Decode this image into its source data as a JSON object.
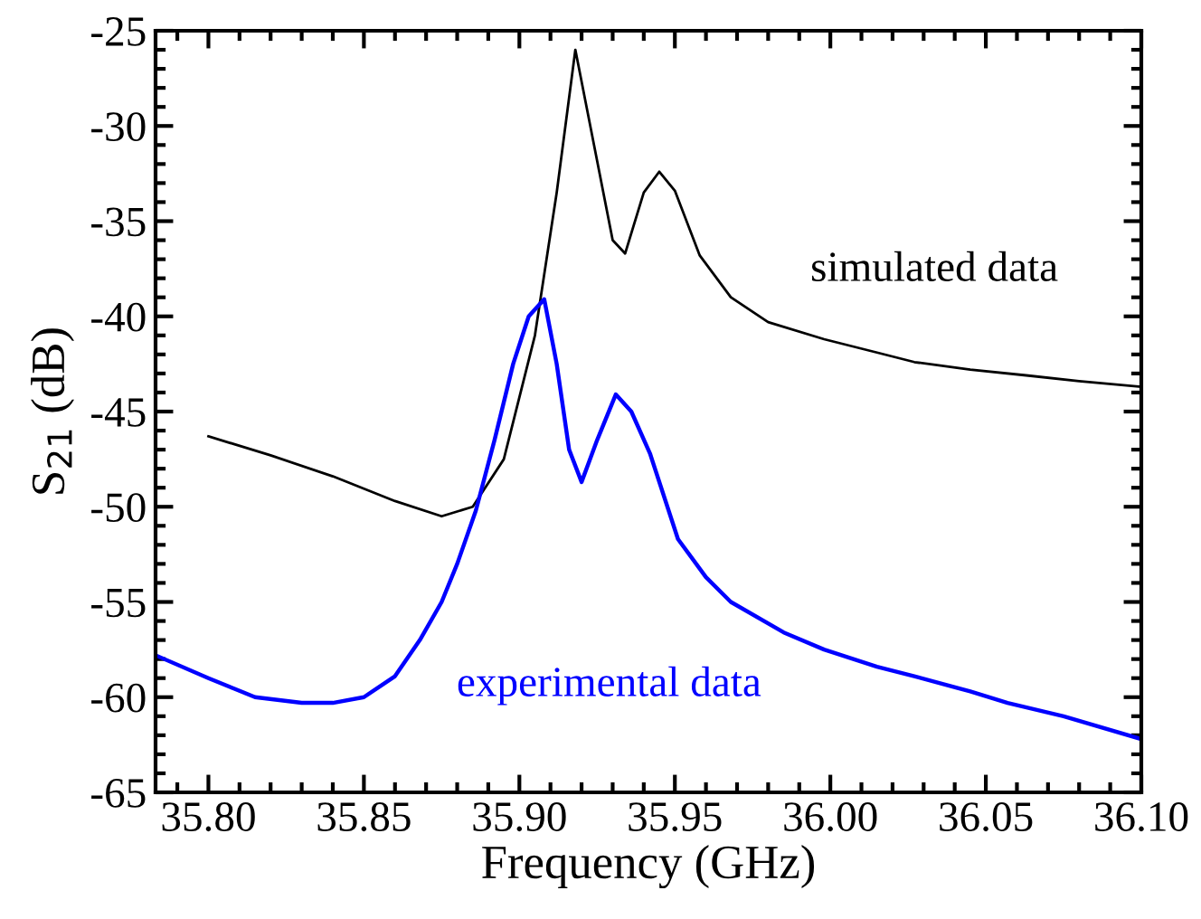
{
  "chart_data": {
    "type": "line",
    "xlabel": "Frequency (GHz)",
    "ylabel": "S$_{21}$ (dB)",
    "xlim": [
      35.783,
      36.1
    ],
    "ylim": [
      -65,
      -25
    ],
    "xticks": [
      {
        "value": 35.8,
        "label": "35.80"
      },
      {
        "value": 35.85,
        "label": "35.85"
      },
      {
        "value": 35.9,
        "label": "35.90"
      },
      {
        "value": 35.95,
        "label": "35.95"
      },
      {
        "value": 36.0,
        "label": "36.00"
      },
      {
        "value": 36.05,
        "label": "36.05"
      },
      {
        "value": 36.1,
        "label": "36.10"
      }
    ],
    "yticks": [
      -65,
      -60,
      -55,
      -50,
      -45,
      -40,
      -35,
      -30,
      -25
    ],
    "grid": false,
    "legend": "right",
    "marker": "none",
    "line_style": "solid",
    "series": [
      {
        "name": "simulated data",
        "color": "#000000",
        "x": [
          35.8,
          35.82,
          35.84,
          35.86,
          35.875,
          35.885,
          35.895,
          35.905,
          35.912,
          35.918,
          35.924,
          35.93,
          35.934,
          35.94,
          35.945,
          35.95,
          35.958,
          35.968,
          35.98,
          35.998,
          36.015,
          36.027,
          36.045,
          36.063,
          36.08,
          36.1
        ],
        "values": [
          -46.3,
          -47.3,
          -48.4,
          -49.7,
          -50.5,
          -50.0,
          -47.5,
          -41.0,
          -33.5,
          -26.0,
          -31.0,
          -36.0,
          -36.7,
          -33.5,
          -32.4,
          -33.4,
          -36.8,
          -39.0,
          -40.3,
          -41.2,
          -41.9,
          -42.4,
          -42.8,
          -43.1,
          -43.4,
          -43.7
        ]
      },
      {
        "name": "experimental data",
        "color": "#0000ff",
        "x": [
          35.783,
          35.8,
          35.815,
          35.83,
          35.84,
          35.85,
          35.86,
          35.868,
          35.875,
          35.88,
          35.886,
          35.892,
          35.898,
          35.903,
          35.908,
          35.912,
          35.916,
          35.92,
          35.925,
          35.931,
          35.936,
          35.942,
          35.951,
          35.96,
          35.968,
          35.985,
          35.998,
          36.015,
          36.027,
          36.045,
          36.057,
          36.075,
          36.1
        ],
        "values": [
          -57.8,
          -59.0,
          -60.0,
          -60.3,
          -60.3,
          -60.0,
          -58.9,
          -57.0,
          -55.0,
          -53.0,
          -50.2,
          -46.5,
          -42.5,
          -40.0,
          -39.1,
          -42.5,
          -47.0,
          -48.7,
          -46.5,
          -44.1,
          -45.0,
          -47.2,
          -51.7,
          -53.7,
          -55.0,
          -56.6,
          -57.5,
          -58.4,
          -58.9,
          -59.7,
          -60.3,
          -61.0,
          -62.2
        ]
      }
    ]
  }
}
